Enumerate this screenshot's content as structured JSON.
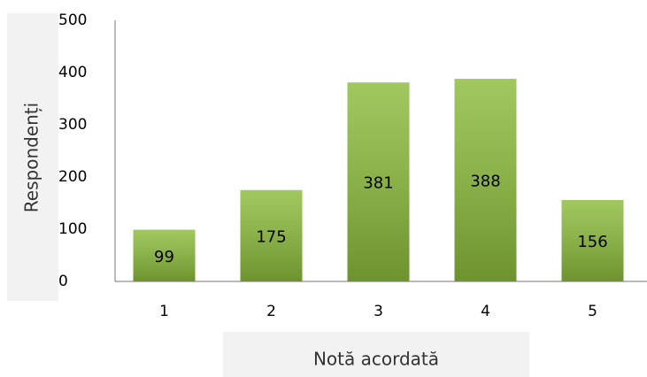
{
  "chart_data": {
    "type": "bar",
    "categories": [
      "1",
      "2",
      "3",
      "4",
      "5"
    ],
    "values": [
      99,
      175,
      381,
      388,
      156
    ],
    "color": "#8cbc3c",
    "ylim": [
      0,
      500
    ],
    "yticks": [
      0,
      100,
      200,
      300,
      400,
      500
    ],
    "y_label": "Respondenți",
    "x_label": "Notă acordată",
    "grid": false
  }
}
